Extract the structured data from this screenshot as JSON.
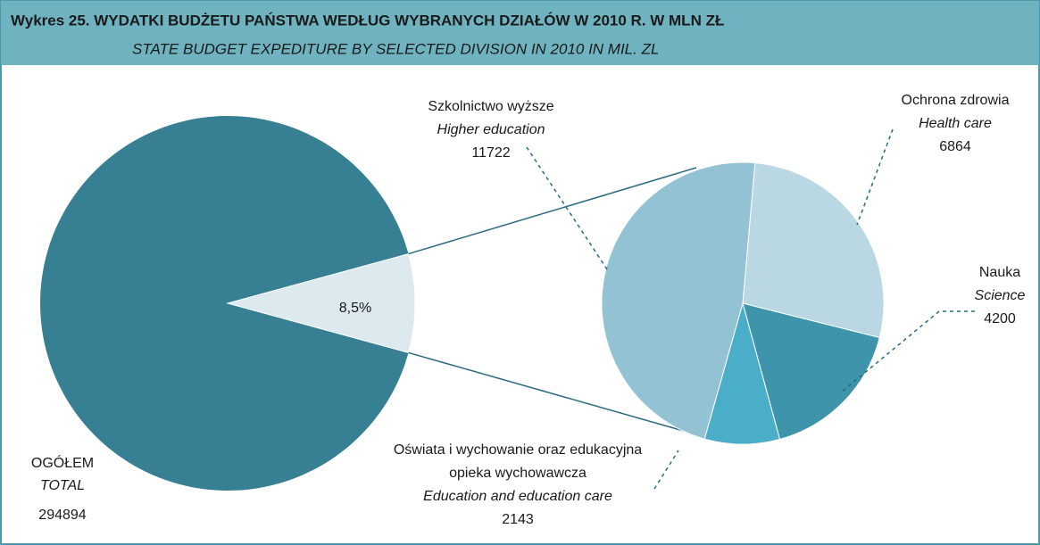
{
  "chart_data": {
    "type": "pie-of-pie",
    "title": "Wykres 25. WYDATKI BUDŻETU PAŃSTWA WEDŁUG WYBRANYCH DZIAŁÓW W 2010 R. W MLN ZŁ",
    "subtitle": "STATE BUDGET EXPEDITURE BY SELECTED DIVISION IN 2010 IN MIL. ZL",
    "total": {
      "name": [
        "OGÓŁEM",
        "TOTAL"
      ],
      "value": 294894,
      "color": "#377f93"
    },
    "share": {
      "value": 8.5,
      "label": "8,5%",
      "color": "#dce9ef"
    },
    "series": [
      {
        "name": [
          "Ochrona zdrowia",
          "Health care"
        ],
        "value": 6864,
        "color": "#b9d8e4"
      },
      {
        "name": [
          "Nauka",
          "Science"
        ],
        "value": 4200,
        "color": "#3e94ab"
      },
      {
        "name": [
          "Oświata i wychowanie oraz edukacyjna",
          "opieka wychowawcza",
          "Education and education care"
        ],
        "value": 2143,
        "color": "#4aaec9"
      },
      {
        "name": [
          "Szkolnictwo wyższe",
          "Higher  education"
        ],
        "value": 11722,
        "color": "#93c2d4"
      }
    ]
  }
}
